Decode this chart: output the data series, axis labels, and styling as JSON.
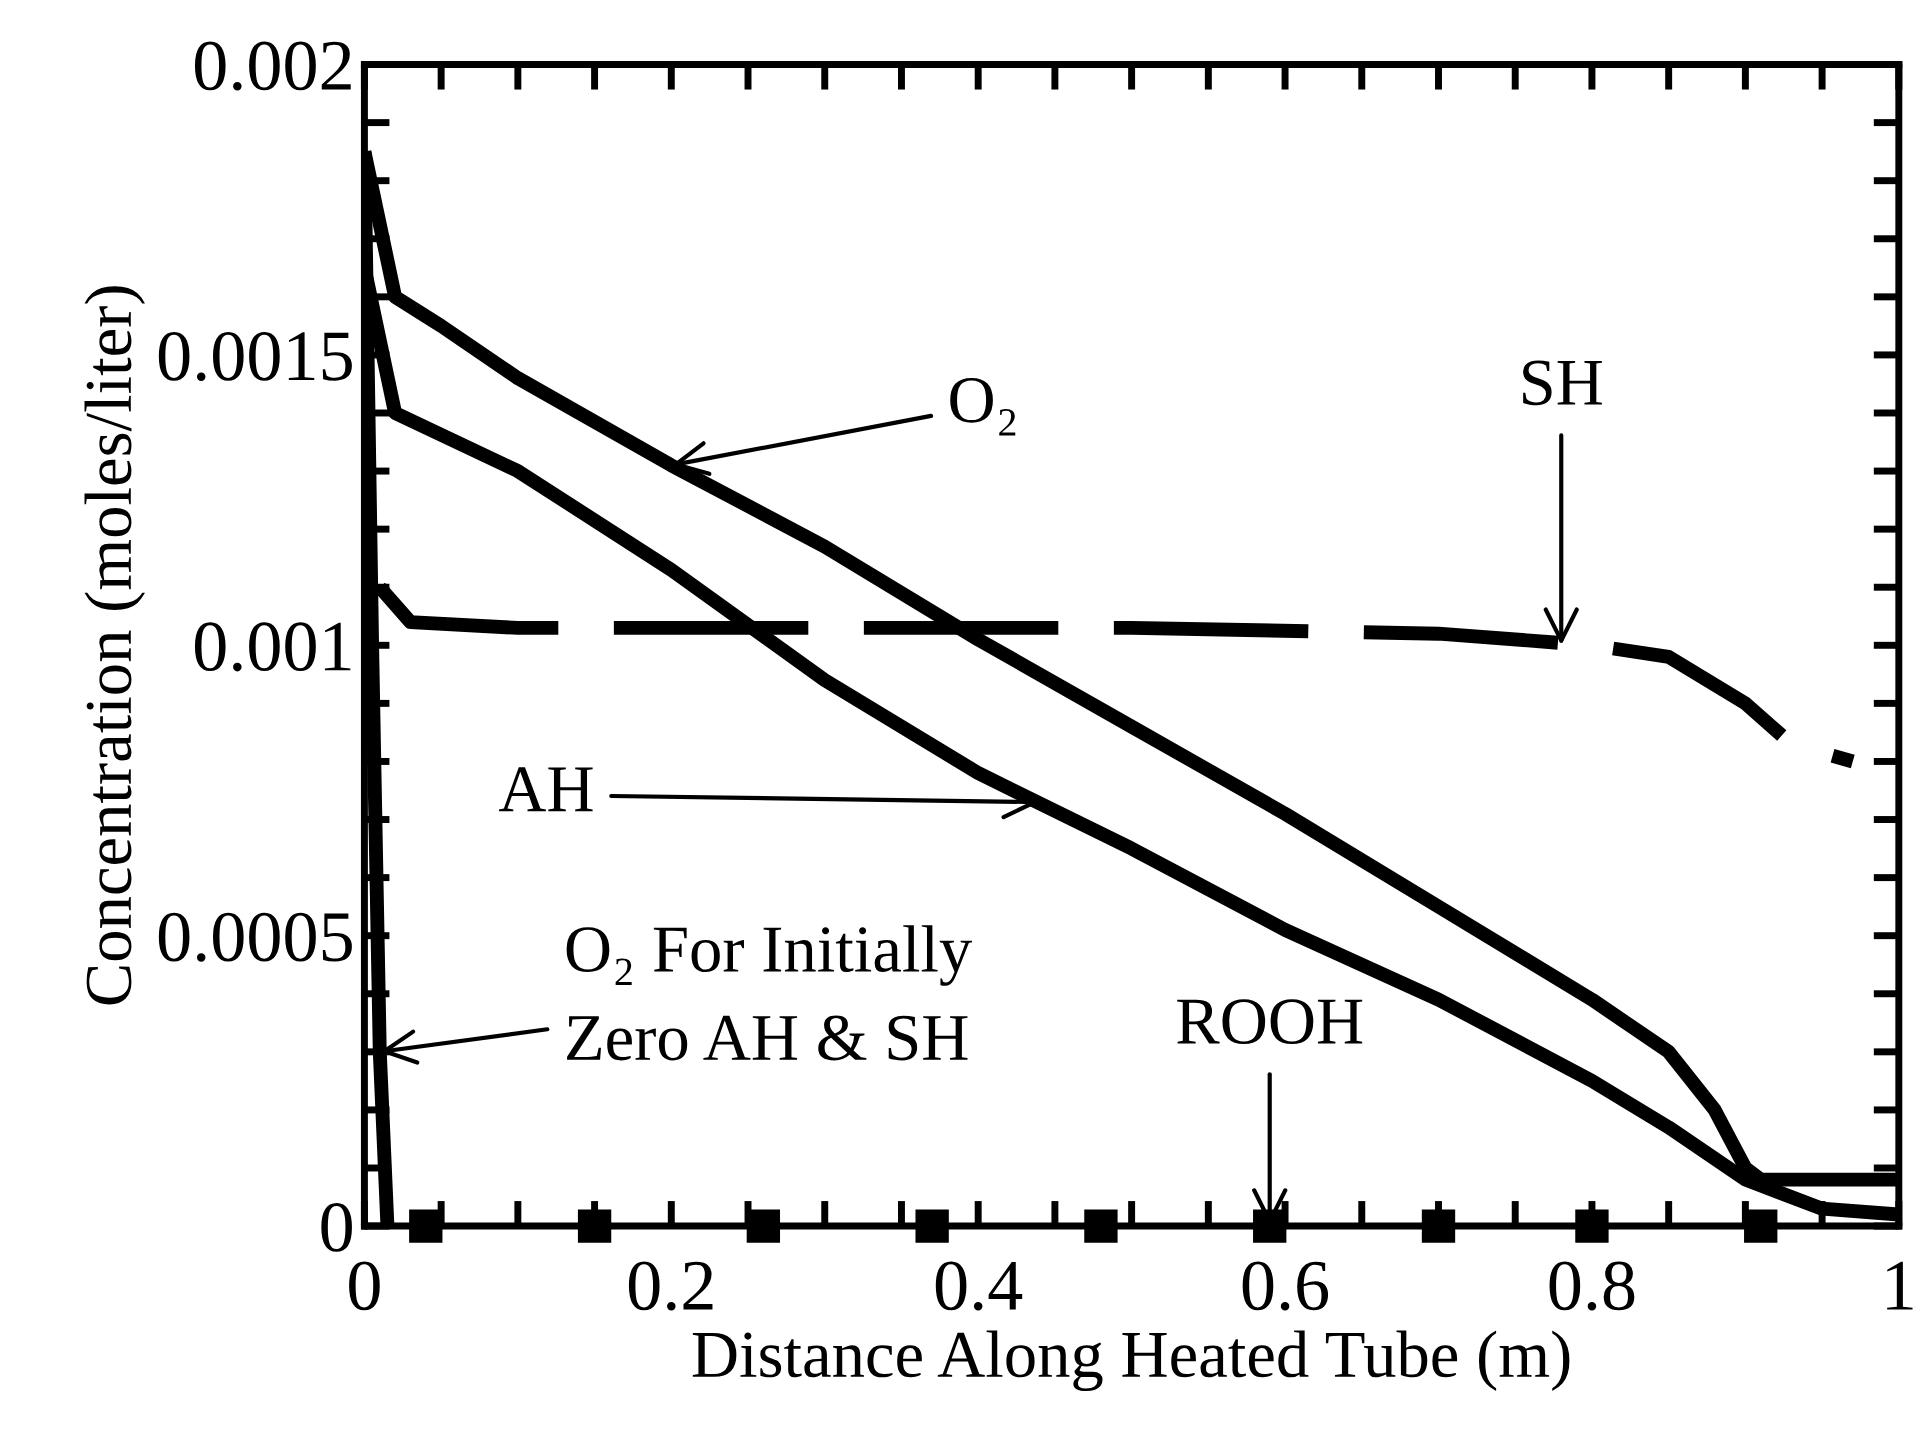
{
  "chart_data": {
    "type": "line",
    "xlabel": "Distance Along Heated Tube (m)",
    "ylabel": "Concentration (moles/liter)",
    "xlim": [
      0,
      1
    ],
    "ylim": [
      0,
      0.002
    ],
    "xticks": [
      0,
      {
        "value": 0.05,
        "label": null
      },
      {
        "value": 0.1,
        "label": null
      },
      {
        "value": 0.15,
        "label": null
      },
      0.2,
      {
        "value": 0.25,
        "label": null
      },
      {
        "value": 0.3,
        "label": null
      },
      {
        "value": 0.35,
        "label": null
      },
      0.4,
      {
        "value": 0.45,
        "label": null
      },
      {
        "value": 0.5,
        "label": null
      },
      {
        "value": 0.55,
        "label": null
      },
      0.6,
      {
        "value": 0.65,
        "label": null
      },
      {
        "value": 0.7,
        "label": null
      },
      {
        "value": 0.75,
        "label": null
      },
      0.8,
      {
        "value": 0.85,
        "label": null
      },
      {
        "value": 0.9,
        "label": null
      },
      {
        "value": 0.95,
        "label": null
      },
      1
    ],
    "yticks": [
      0,
      {
        "value": 0.0001,
        "label": null
      },
      {
        "value": 0.0002,
        "label": null
      },
      {
        "value": 0.0003,
        "label": null
      },
      {
        "value": 0.0004,
        "label": null
      },
      0.0005,
      {
        "value": 0.0006,
        "label": null
      },
      {
        "value": 0.0007,
        "label": null
      },
      {
        "value": 0.0008,
        "label": null
      },
      {
        "value": 0.0009,
        "label": null
      },
      0.001,
      {
        "value": 0.0011,
        "label": null
      },
      {
        "value": 0.0012,
        "label": null
      },
      {
        "value": 0.0013,
        "label": null
      },
      {
        "value": 0.0014,
        "label": null
      },
      0.0015,
      {
        "value": 0.0016,
        "label": null
      },
      {
        "value": 0.0017,
        "label": null
      },
      {
        "value": 0.0018,
        "label": null
      },
      {
        "value": 0.0019,
        "label": null
      },
      0.002
    ],
    "grid": false,
    "legend": false,
    "series": [
      {
        "color": "#000000",
        "line_style": "solid",
        "marker": "none",
        "x": [
          0,
          0.02,
          0.05,
          0.1,
          0.2,
          0.3,
          0.4,
          0.5,
          0.6,
          0.7,
          0.8,
          0.85,
          0.88,
          0.9,
          0.91,
          1
        ],
        "values": [
          0.00185,
          0.0016,
          0.00155,
          0.00146,
          0.00131,
          0.00117,
          0.00101,
          0.00086,
          0.00071,
          0.00055,
          0.00039,
          0.0003,
          0.0002,
          0.0001,
          8e-05,
          8e-05
        ]
      },
      {
        "color": "#000000",
        "line_style": "solid",
        "marker": "none",
        "x": [
          0,
          0.02,
          0.1,
          0.2,
          0.3,
          0.4,
          0.5,
          0.6,
          0.7,
          0.8,
          0.85,
          0.9,
          0.95,
          1
        ],
        "values": [
          0.00165,
          0.0014,
          0.0013,
          0.00113,
          0.00094,
          0.00078,
          0.00065,
          0.00051,
          0.00039,
          0.00025,
          0.00017,
          8e-05,
          3e-05,
          2e-05
        ]
      },
      {
        "color": "#000000",
        "line_style": "dashed",
        "marker": "none",
        "x": [
          0.01,
          0.03,
          0.1,
          0.5,
          0.7,
          0.8,
          0.85,
          0.9,
          0.93,
          0.97
        ],
        "values": [
          0.0011,
          0.00104,
          0.00103,
          0.00103,
          0.00102,
          0.001,
          0.00098,
          0.0009,
          0.00083,
          0.0008
        ]
      },
      {
        "color": "#000000",
        "line_style": "solid",
        "marker": "none",
        "x": [
          0,
          0.005,
          0.01,
          0.015
        ],
        "values": [
          0.00185,
          0.001,
          0.0003,
          0
        ]
      },
      {
        "type": "scatter",
        "color": "#000000",
        "marker": "square",
        "x": [
          0.04,
          0.15,
          0.26,
          0.37,
          0.48,
          0.59,
          0.7,
          0.8,
          0.91
        ],
        "values": [
          0,
          0,
          0,
          0,
          0,
          0,
          0,
          0,
          0
        ]
      }
    ],
    "annotations": [
      {
        "text": "O₂",
        "x": 0.2,
        "y": 0.00131
      },
      {
        "text": "AH",
        "x": 0.44,
        "y": 0.00073
      },
      {
        "text": "SH",
        "x": 0.78,
        "y": 0.001
      },
      {
        "text": "O₂ For Initially\nZero AH & SH",
        "x": 0.01,
        "y": 0.0003
      },
      {
        "text": "ROOH",
        "x": 0.59,
        "y": 0
      }
    ]
  }
}
